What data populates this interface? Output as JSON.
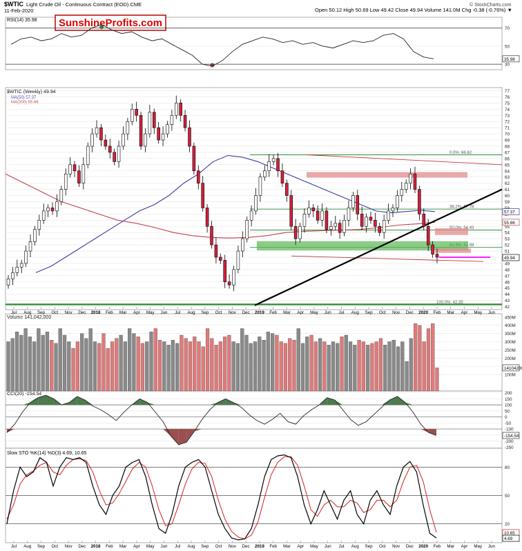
{
  "header": {
    "symbol": "$WTIC",
    "description": "Light Crude Oil - Continuous Contract (EOD) CME",
    "date": "11-Feb-2020",
    "quote": "Open 50.12  High 50.69  Low 49.42  Close 49.94  Volume 141.0M  Chg -0.38 (-0.76%) ▼",
    "credit": "© StockCharts.com"
  },
  "logo_text": "SunshineProfits.com",
  "colors": {
    "up": "#ffffff",
    "down": "#d2213d",
    "ma50": "#3a3aa0",
    "ma200": "#c0404a",
    "fib": "#2e8b3a",
    "zone_red": "#e48b8b",
    "zone_green": "#52b04a",
    "pos_fill": "#4e7a4e",
    "neg_fill": "#9a5050"
  },
  "chart_data": [
    {
      "type": "line",
      "title": "RSI(14) 35.98",
      "yticks": [
        30,
        50,
        70
      ],
      "ylim": [
        24,
        82
      ],
      "last_label": "35.98",
      "values": [
        52,
        58,
        60,
        56,
        58,
        64,
        60,
        62,
        70,
        74,
        68,
        64,
        66,
        60,
        56,
        58,
        52,
        46,
        40,
        30,
        28,
        34,
        44,
        52,
        56,
        60,
        58,
        54,
        56,
        52,
        54,
        50,
        48,
        52,
        56,
        54,
        56,
        62,
        64,
        58,
        44,
        38,
        36
      ]
    },
    {
      "type": "candlestick",
      "title": "$WTIC (Weekly) 49.94",
      "legend": [
        {
          "name": "MA(50) 57.37",
          "color": "#3a3aa0"
        },
        {
          "name": "MA(200) 55.66",
          "color": "#c0404a"
        }
      ],
      "ylim": [
        41.5,
        77.5
      ],
      "yticks": [
        42,
        43,
        44,
        45,
        46,
        47,
        48,
        49,
        50,
        51,
        52,
        53,
        54,
        55,
        56,
        57,
        58,
        59,
        60,
        61,
        62,
        63,
        64,
        65,
        66,
        67,
        68,
        69,
        70,
        71,
        72,
        73,
        74,
        75,
        76,
        77
      ],
      "closes": [
        46.5,
        47.5,
        48.4,
        49,
        51,
        52.5,
        54.5,
        56,
        57.5,
        58,
        57.5,
        59,
        61,
        63.5,
        65,
        64,
        62,
        65,
        68,
        70,
        71,
        69,
        68,
        67,
        65.5,
        68,
        70,
        72,
        74,
        73,
        68,
        70,
        73.5,
        71,
        69,
        70,
        71.5,
        73,
        75,
        73,
        71,
        68,
        64,
        62,
        58,
        55,
        52,
        50,
        49.5,
        46,
        45.5,
        48,
        51,
        53,
        56,
        57.5,
        60,
        63,
        64,
        65.5,
        66,
        64,
        62,
        60,
        55,
        53,
        55,
        57,
        58,
        57.5,
        56,
        57.5,
        54.5,
        55,
        55.5,
        54,
        56,
        58,
        60,
        57,
        55,
        56.5,
        56,
        55,
        54,
        56,
        57.5,
        58,
        60,
        61,
        62,
        63.5,
        61,
        57,
        55,
        52,
        50.5,
        50
      ],
      "ma50": [
        47.5,
        48.5,
        50,
        51.5,
        53,
        54.5,
        56,
        57.5,
        58.5,
        60,
        62,
        63.5,
        65.5,
        66.5,
        66.2,
        65.5,
        64.5,
        63.5,
        62.5,
        61.5,
        60.5,
        59.5,
        58.5,
        57.5,
        57.2,
        57.4,
        57.6,
        57.4
      ],
      "ma200": [
        63.5,
        62,
        60.5,
        59,
        58,
        57,
        56,
        55.5,
        54.8,
        54,
        53.5,
        53.2,
        53.1,
        53.2,
        53.5,
        54,
        54.2,
        54.3,
        54.4,
        54.5,
        54.8,
        55.2,
        55.4,
        55.66
      ],
      "x_labels": [
        "Jul",
        "Aug",
        "Sep",
        "Oct",
        "Nov",
        "Dec",
        "2018",
        "Feb",
        "Mar",
        "Apr",
        "May",
        "Jun",
        "Jul",
        "Aug",
        "Sep",
        "Oct",
        "Nov",
        "Dec",
        "2019",
        "Feb",
        "Mar",
        "Apr",
        "May",
        "Jun",
        "Jul",
        "Aug",
        "Sep",
        "Oct",
        "Nov",
        "Dec",
        "2020",
        "Feb",
        "Mar",
        "Apr",
        "May",
        "Jun"
      ],
      "price_labels": [
        "57.37",
        "55.66",
        "49.94"
      ],
      "fib_levels": [
        {
          "label": "0.0%: 66.62",
          "value": 66.6
        },
        {
          "label": "38.2%: 57.78",
          "value": 57.8
        },
        {
          "label": "50.0%: 54.43",
          "value": 54.4
        },
        {
          "label": "61.8%: 51.59",
          "value": 51.6
        },
        {
          "label": "100.0%: 42.35",
          "value": 42.35
        }
      ]
    },
    {
      "type": "bar",
      "title": "Volume 141,042,000",
      "yticks_labels": [
        "100M",
        "150M",
        "200M",
        "250M",
        "300M",
        "350M",
        "400M",
        "450M"
      ],
      "yticks": [
        100,
        150,
        200,
        250,
        300,
        350,
        400,
        450
      ],
      "ylim": [
        0,
        470
      ],
      "last_label": "141042000",
      "values": [
        300,
        320,
        360,
        340,
        380,
        330,
        300,
        380,
        340,
        360,
        310,
        290,
        380,
        340,
        300,
        260,
        300,
        350,
        320,
        380,
        300,
        290,
        350,
        260,
        300,
        320,
        340,
        300,
        380,
        350,
        330,
        290,
        300,
        360,
        380,
        310,
        300,
        280,
        310,
        290,
        340,
        320,
        300,
        330,
        300,
        270,
        380,
        320,
        280,
        300,
        330,
        340,
        300,
        290,
        380,
        340,
        290,
        300,
        330,
        310,
        360,
        350,
        340,
        300,
        290,
        320,
        310,
        380,
        290,
        330,
        340,
        300,
        320,
        300,
        280,
        300,
        290,
        330,
        340,
        300,
        280,
        310,
        300,
        280,
        290,
        300,
        320,
        280,
        300,
        310,
        270,
        300,
        180,
        320,
        410,
        400,
        300,
        380,
        410,
        141
      ]
    },
    {
      "type": "area",
      "title": "CCI(20) -154.54",
      "yticks": [
        -250,
        -200,
        -150,
        -100,
        -50,
        0,
        50,
        100,
        150,
        200
      ],
      "ylim": [
        -260,
        215
      ],
      "last_label": "-154.54",
      "values": [
        -130,
        -60,
        40,
        120,
        160,
        180,
        150,
        100,
        120,
        170,
        140,
        90,
        60,
        20,
        -30,
        40,
        100,
        150,
        120,
        40,
        -40,
        -160,
        -230,
        -210,
        -120,
        -20,
        60,
        120,
        150,
        120,
        80,
        20,
        -30,
        -60,
        -20,
        30,
        -40,
        -60,
        10,
        60,
        100,
        160,
        140,
        60,
        -20,
        -70,
        -40,
        20,
        80,
        140,
        170,
        120,
        40,
        -60,
        -130,
        -154
      ]
    },
    {
      "type": "line",
      "title": "Slow STO %K(14) %D(3) 4.69, 10.65",
      "legend": [
        {
          "name": "%K 4.69",
          "color": "#000000"
        },
        {
          "name": "%D 10.65",
          "color": "#d42020"
        }
      ],
      "yticks": [
        20,
        50,
        80
      ],
      "ylim": [
        0,
        100
      ],
      "last_labels": [
        "10.65",
        "4.69"
      ],
      "k": [
        20,
        55,
        80,
        70,
        75,
        90,
        85,
        60,
        80,
        90,
        88,
        90,
        85,
        60,
        40,
        30,
        50,
        60,
        80,
        85,
        88,
        70,
        40,
        15,
        10,
        30,
        60,
        80,
        85,
        88,
        80,
        55,
        30,
        15,
        5,
        3,
        4,
        15,
        40,
        70,
        88,
        92,
        93,
        90,
        70,
        40,
        20,
        35,
        55,
        40,
        25,
        45,
        55,
        30,
        20,
        45,
        55,
        40,
        30,
        60,
        80,
        86,
        75,
        40,
        10,
        5
      ],
      "d": [
        25,
        40,
        62,
        72,
        76,
        82,
        85,
        75,
        72,
        82,
        88,
        89,
        87,
        75,
        55,
        40,
        42,
        52,
        65,
        78,
        85,
        80,
        60,
        35,
        18,
        20,
        40,
        62,
        78,
        85,
        84,
        70,
        45,
        25,
        12,
        6,
        4,
        8,
        22,
        48,
        72,
        85,
        91,
        91,
        82,
        60,
        35,
        28,
        40,
        45,
        38,
        38,
        45,
        42,
        32,
        35,
        45,
        45,
        38,
        45,
        65,
        80,
        82,
        65,
        35,
        11
      ]
    }
  ]
}
